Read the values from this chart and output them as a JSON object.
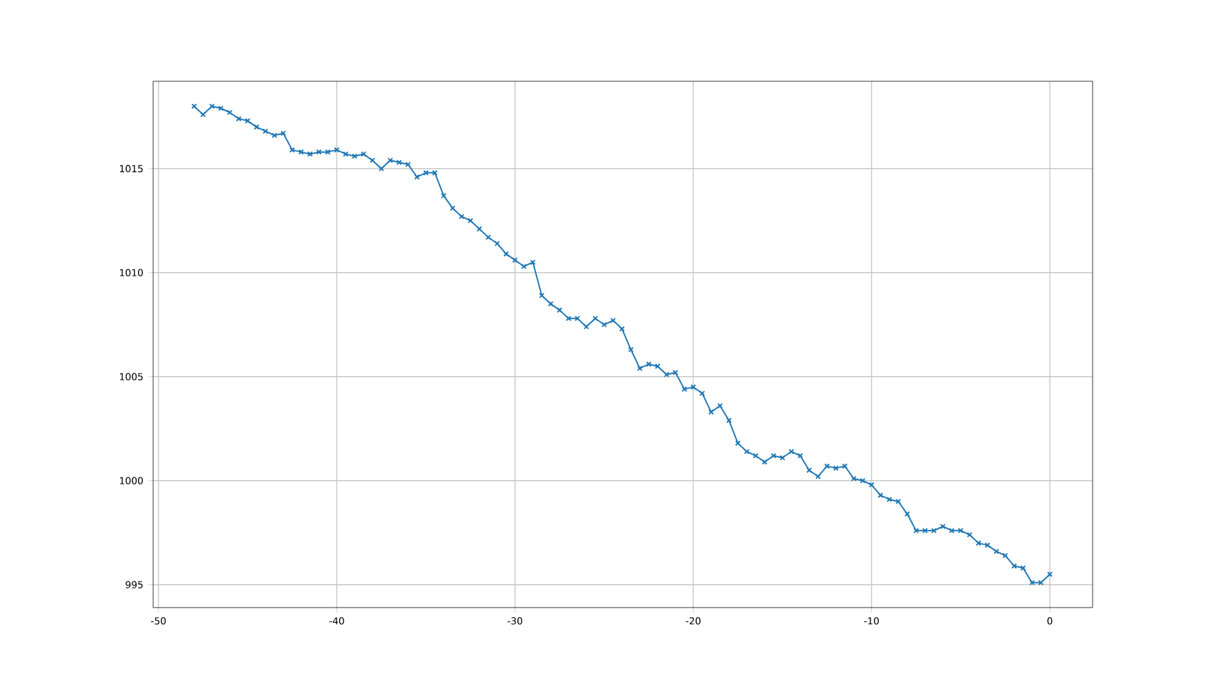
{
  "chart_data": {
    "type": "line",
    "x": [
      -48,
      -47.5,
      -47,
      -46.5,
      -46,
      -45.5,
      -45,
      -44.5,
      -44,
      -43.5,
      -43,
      -42.5,
      -42,
      -41.5,
      -41,
      -40.5,
      -40,
      -39.5,
      -39,
      -38.5,
      -38,
      -37.5,
      -37,
      -36.5,
      -36,
      -35.5,
      -35,
      -34.5,
      -34,
      -33.5,
      -33,
      -32.5,
      -32,
      -31.5,
      -31,
      -30.5,
      -30,
      -29.5,
      -29,
      -28.5,
      -28,
      -27.5,
      -27,
      -26.5,
      -26,
      -25.5,
      -25,
      -24.5,
      -24,
      -23.5,
      -23,
      -22.5,
      -22,
      -21.5,
      -21,
      -20.5,
      -20,
      -19.5,
      -19,
      -18.5,
      -18,
      -17.5,
      -17,
      -16.5,
      -16,
      -15.5,
      -15,
      -14.5,
      -14,
      -13.5,
      -13,
      -12.5,
      -12,
      -11.5,
      -11,
      -10.5,
      -10,
      -9.5,
      -9,
      -8.5,
      -8,
      -7.5,
      -7,
      -6.5,
      -6,
      -5.5,
      -5,
      -4.5,
      -4,
      -3.5,
      -3,
      -2.5,
      -2,
      -1.5,
      -1,
      -0.5,
      0
    ],
    "series": [
      {
        "color": "#1f77b4",
        "values": [
          1018.0,
          1017.6,
          1018.0,
          1017.9,
          1017.7,
          1017.4,
          1017.3,
          1017.0,
          1016.8,
          1016.6,
          1016.7,
          1015.9,
          1015.8,
          1015.7,
          1015.8,
          1015.8,
          1015.9,
          1015.7,
          1015.6,
          1015.7,
          1015.4,
          1015.0,
          1015.4,
          1015.3,
          1015.2,
          1014.6,
          1014.8,
          1014.8,
          1013.7,
          1013.1,
          1012.7,
          1012.5,
          1012.1,
          1011.7,
          1011.4,
          1010.9,
          1010.6,
          1010.3,
          1010.5,
          1008.9,
          1008.5,
          1008.2,
          1007.8,
          1007.8,
          1007.4,
          1007.8,
          1007.5,
          1007.7,
          1007.3,
          1006.3,
          1005.4,
          1005.6,
          1005.5,
          1005.1,
          1005.2,
          1004.4,
          1004.5,
          1004.2,
          1003.3,
          1003.6,
          1002.9,
          1001.8,
          1001.4,
          1001.2,
          1000.9,
          1001.2,
          1001.1,
          1001.4,
          1001.2,
          1000.5,
          1000.2,
          1000.7,
          1000.6,
          1000.7,
          1000.1,
          1000.0,
          999.8,
          999.3,
          999.1,
          999.0,
          998.4,
          997.6,
          997.6,
          997.6,
          997.8,
          997.6,
          997.6,
          997.4,
          997.0,
          996.9,
          996.6,
          996.4,
          995.9,
          995.8,
          995.1,
          995.1,
          995.5
        ]
      }
    ],
    "xlim": [
      -50.3,
      2.4
    ],
    "ylim": [
      993.9,
      1019.2
    ],
    "xticks": [
      -50,
      -40,
      -30,
      -20,
      -10,
      0
    ],
    "yticks": [
      995,
      1000,
      1005,
      1010,
      1015
    ],
    "grid": true,
    "marker": "cross",
    "line_style": "solid"
  }
}
